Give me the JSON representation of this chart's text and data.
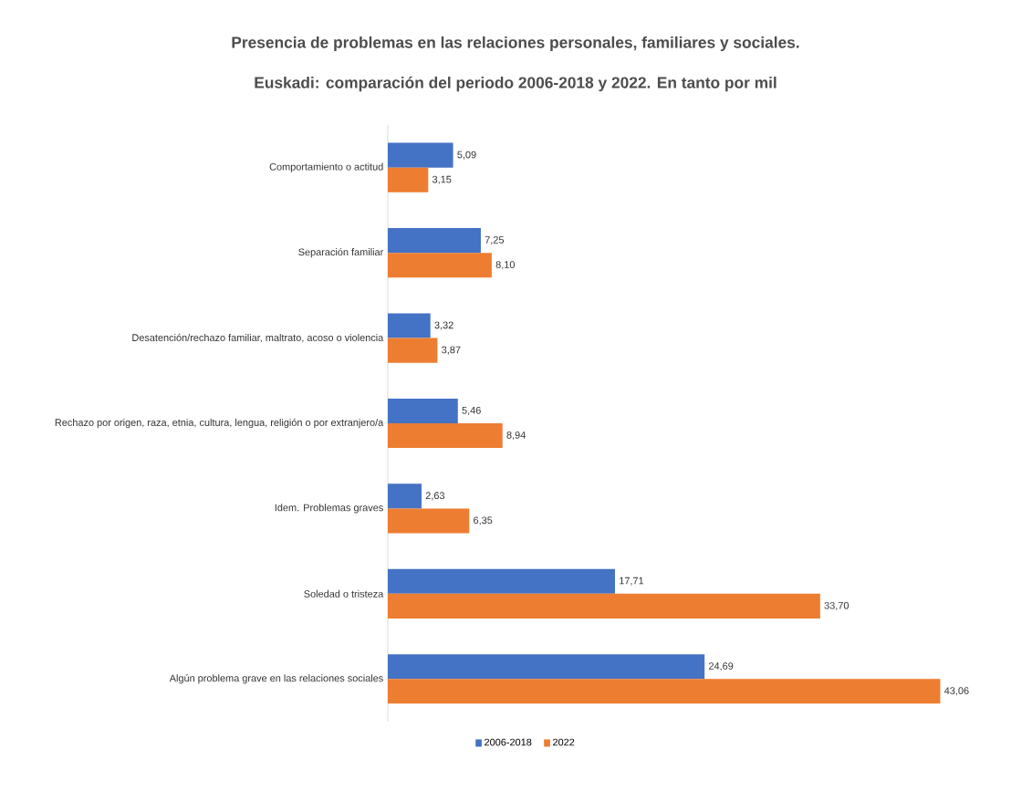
{
  "chart_data": {
    "type": "bar",
    "orientation": "horizontal",
    "title": "Presencia de problemas en las relaciones personales, familiares y sociales.",
    "subtitle": "Euskadi: comparación del periodo 2006-2018 y 2022. En tanto por mil",
    "categories": [
      "Comportamiento o actitud",
      "Separación familiar",
      "Desatención/rechazo familiar, maltrato, acoso o violencia",
      "Rechazo por origen, raza, etnia, cultura, lengua, religión o por extranjero/a",
      "Idem. Problemas graves",
      "Soledad o tristeza",
      "Algún problema grave en las relaciones sociales"
    ],
    "series": [
      {
        "name": "2006-2018",
        "color": "#4472c4",
        "values": [
          5.09,
          7.25,
          3.32,
          5.46,
          2.63,
          17.71,
          24.69
        ],
        "value_labels": [
          "5,09",
          "7,25",
          "3,32",
          "5,46",
          "2,63",
          "17,71",
          "24,69"
        ]
      },
      {
        "name": "2022",
        "color": "#ed7d31",
        "values": [
          3.15,
          8.1,
          3.87,
          8.94,
          6.35,
          33.7,
          43.06
        ],
        "value_labels": [
          "3,15",
          "8,10",
          "3,87",
          "8,94",
          "6,35",
          "33,70",
          "43,06"
        ]
      }
    ],
    "legend": "bottom"
  }
}
